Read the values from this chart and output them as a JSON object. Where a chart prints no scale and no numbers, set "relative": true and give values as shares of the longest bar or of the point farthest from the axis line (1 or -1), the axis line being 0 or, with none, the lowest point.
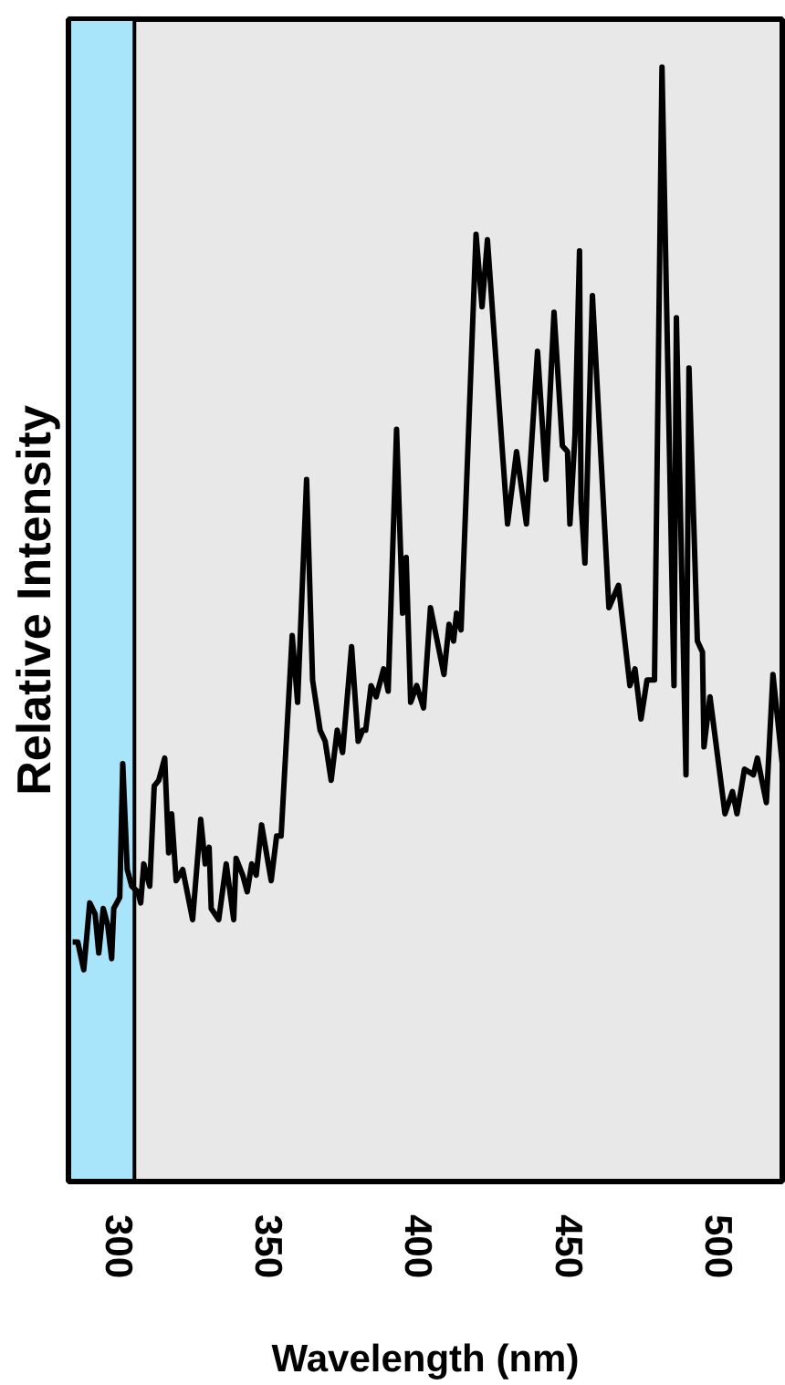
{
  "chart_data": {
    "type": "line",
    "relative": true,
    "xlabel": "Wavelength (nm)",
    "ylabel": "Relative Intensity",
    "xlim": [
      283,
      521
    ],
    "xticks": [
      300,
      350,
      400,
      450,
      500
    ],
    "grid": false,
    "marker": "none",
    "line_style": "solid",
    "bands": [
      {
        "axis": "x",
        "from": 283,
        "to": 305,
        "color": "#a8e4fa"
      }
    ],
    "series": [
      {
        "color": "#000000",
        "x": [
          284.4,
          286.1,
          288.1,
          290.1,
          291.9,
          293.1,
          294.6,
          296.1,
          297.4,
          298.1,
          300.1,
          301.1,
          302.6,
          304.1,
          306.1,
          307.1,
          308.1,
          310.1,
          311.6,
          313.1,
          315.1,
          316.4,
          317.4,
          318.9,
          321.1,
          324.4,
          327.1,
          328.6,
          329.9,
          330.6,
          333.1,
          335.6,
          338.1,
          338.9,
          341.1,
          342.6,
          344.1,
          345.6,
          347.4,
          350.6,
          352.4,
          353.9,
          357.6,
          359.4,
          362.4,
          364.4,
          366.9,
          368.6,
          370.6,
          372.6,
          374.4,
          377.4,
          379.6,
          381.1,
          382.1,
          383.9,
          385.6,
          388.1,
          389.6,
          392.4,
          394.4,
          395.6,
          397.1,
          399.1,
          401.4,
          403.7,
          408.2,
          409.9,
          411.4,
          412.4,
          413.9,
          418.9,
          420.9,
          422.7,
          429.4,
          432.4,
          435.7,
          439.4,
          442.2,
          444.9,
          447.7,
          449.4,
          450.2,
          451.9,
          453.4,
          453.9,
          455.2,
          457.7,
          463.2,
          466.4,
          470.2,
          471.9,
          473.9,
          475.9,
          478.4,
          480.9,
          484.9,
          485.7,
          488.9,
          489.9,
          492.7,
          494.4,
          494.9,
          496.9,
          501.9,
          504.4,
          505.9,
          508.4,
          511.4,
          512.7,
          515.7,
          517.9,
          521
        ],
        "values": [
          0.215,
          0.215,
          0.19,
          0.25,
          0.24,
          0.205,
          0.245,
          0.23,
          0.2,
          0.245,
          0.255,
          0.375,
          0.28,
          0.265,
          0.26,
          0.25,
          0.285,
          0.265,
          0.355,
          0.36,
          0.38,
          0.295,
          0.33,
          0.27,
          0.28,
          0.235,
          0.325,
          0.285,
          0.3,
          0.245,
          0.235,
          0.285,
          0.235,
          0.29,
          0.275,
          0.26,
          0.285,
          0.275,
          0.32,
          0.27,
          0.31,
          0.31,
          0.49,
          0.43,
          0.63,
          0.45,
          0.405,
          0.395,
          0.36,
          0.405,
          0.385,
          0.48,
          0.395,
          0.405,
          0.405,
          0.445,
          0.435,
          0.46,
          0.44,
          0.675,
          0.51,
          0.56,
          0.43,
          0.445,
          0.425,
          0.515,
          0.455,
          0.5,
          0.485,
          0.51,
          0.495,
          0.85,
          0.785,
          0.845,
          0.59,
          0.655,
          0.59,
          0.745,
          0.63,
          0.78,
          0.66,
          0.655,
          0.59,
          0.67,
          0.835,
          0.61,
          0.555,
          0.795,
          0.515,
          0.535,
          0.445,
          0.46,
          0.415,
          0.45,
          0.45,
          1.0,
          0.445,
          0.775,
          0.365,
          0.73,
          0.485,
          0.475,
          0.39,
          0.435,
          0.33,
          0.35,
          0.33,
          0.37,
          0.365,
          0.38,
          0.34,
          0.455,
          0.375
        ]
      }
    ]
  }
}
